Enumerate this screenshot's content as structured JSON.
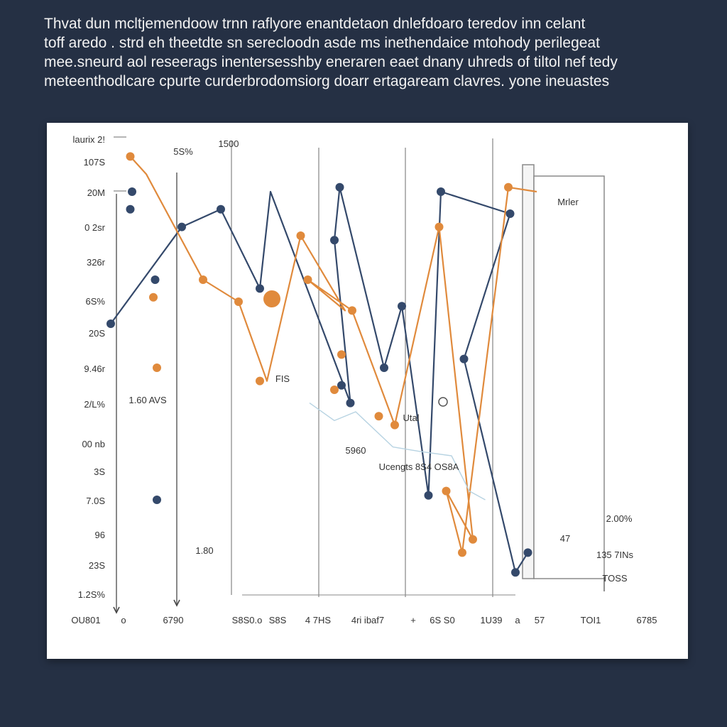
{
  "caption": {
    "lines": [
      "Thvat dun mcltjemendoow trnn raflyore enantdetaon dnlefdoaro teredov inn celant",
      "toff aredo . strd eh theetdte sn serecloodn asde ms inethendaice mtohody perilegeat",
      "mee.sneurd aol reseerags inentersesshby eneraren eaet dnany uhreds of tiltol nef tedy",
      "meteenthodlcare cpurte curderbrodomsiorg doarr ertagaream clavres. yone ineuastes"
    ]
  },
  "chart_data": {
    "type": "line",
    "title": "",
    "xlabel": "",
    "ylabel": "",
    "y_tick_labels": [
      "laurix 2!",
      "107S",
      "20M",
      "0 2sr",
      "326r",
      "6S%",
      "20S",
      "9.46r",
      "2/L%",
      "00 nb",
      "3S",
      "7.0S",
      "96",
      "23S",
      "1.2S%"
    ],
    "x_tick_labels": [
      "OU801",
      "o",
      "6790",
      "S8S0.o",
      "S8S",
      "4 7HS",
      "4ri ibaf7",
      "+",
      "6S S0",
      "1U39",
      "a",
      "57",
      "TOI1",
      "6785"
    ],
    "annotations": [
      "5S%",
      "1500",
      "1.60 AVS",
      "1.80",
      "FIS",
      "Utal",
      "5960",
      "Ucengts 8S4 OS8A",
      "Mrler",
      "2.00%",
      "47",
      "135 7INs",
      "TOSS"
    ],
    "colors": {
      "navy": "#34496b",
      "orange": "#e08a3c",
      "light_blue": "#b7d3e2"
    },
    "grid": true,
    "series": [
      {
        "color": "navy",
        "points": [
          [
            0.0,
            600
          ],
          [
            4.0,
            820
          ],
          [
            6.2,
            860
          ],
          [
            8.4,
            680
          ],
          [
            9.0,
            900
          ],
          [
            13.5,
            420
          ],
          [
            12.6,
            790
          ],
          [
            12.9,
            910
          ],
          [
            15.4,
            500
          ],
          [
            16.4,
            640
          ],
          [
            17.9,
            210
          ],
          [
            18.6,
            900
          ],
          [
            22.5,
            850
          ],
          [
            19.9,
            520
          ],
          [
            22.8,
            35
          ],
          [
            23.5,
            80
          ]
        ]
      },
      {
        "color": "orange",
        "points": [
          [
            1.1,
            980
          ],
          [
            2.0,
            940
          ],
          [
            5.2,
            700
          ],
          [
            7.2,
            650
          ],
          [
            8.8,
            470
          ],
          [
            10.7,
            800
          ],
          [
            13.2,
            630
          ],
          [
            11.1,
            700
          ],
          [
            13.6,
            630
          ],
          [
            16.0,
            370
          ],
          [
            18.5,
            820
          ],
          [
            20.4,
            110
          ],
          [
            18.9,
            220
          ],
          [
            19.8,
            80
          ],
          [
            22.4,
            910
          ],
          [
            24.0,
            900
          ]
        ]
      },
      {
        "color": "light_blue",
        "points": [
          [
            11.2,
            420
          ],
          [
            12.6,
            380
          ],
          [
            13.8,
            400
          ],
          [
            15.9,
            320
          ],
          [
            17.4,
            310
          ],
          [
            19.2,
            300
          ],
          [
            20.2,
            220
          ],
          [
            21.1,
            200
          ]
        ]
      }
    ],
    "markers": {
      "navy": [
        [
          0.0,
          600
        ],
        [
          1.1,
          860
        ],
        [
          1.2,
          900
        ],
        [
          2.5,
          700
        ],
        [
          4.0,
          820
        ],
        [
          6.2,
          860
        ],
        [
          8.4,
          680
        ],
        [
          13.5,
          420
        ],
        [
          12.6,
          790
        ],
        [
          12.9,
          910
        ],
        [
          15.4,
          500
        ],
        [
          16.4,
          640
        ],
        [
          17.9,
          210
        ],
        [
          18.6,
          900
        ],
        [
          19.9,
          520
        ],
        [
          22.8,
          35
        ],
        [
          23.5,
          80
        ],
        [
          22.5,
          850
        ],
        [
          2.6,
          200
        ],
        [
          13.0,
          460
        ]
      ],
      "orange": [
        [
          1.1,
          980
        ],
        [
          2.4,
          660
        ],
        [
          2.6,
          500
        ],
        [
          5.2,
          700
        ],
        [
          7.2,
          650
        ],
        [
          8.4,
          470
        ],
        [
          10.7,
          800
        ],
        [
          11.1,
          700
        ],
        [
          13.6,
          630
        ],
        [
          16.0,
          370
        ],
        [
          15.1,
          390
        ],
        [
          18.5,
          820
        ],
        [
          18.9,
          220
        ],
        [
          19.8,
          80
        ],
        [
          20.4,
          110
        ],
        [
          22.4,
          910
        ],
        [
          13.0,
          530
        ],
        [
          12.6,
          450
        ]
      ]
    }
  }
}
